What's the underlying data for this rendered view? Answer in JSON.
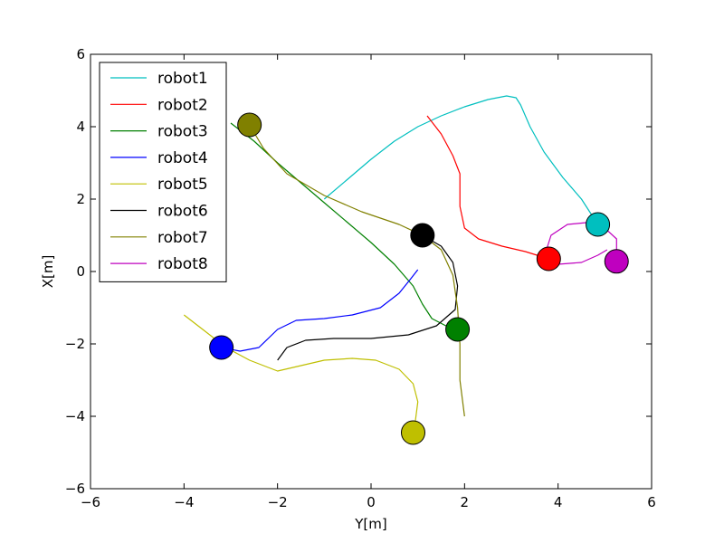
{
  "chart_data": {
    "type": "line",
    "title": "",
    "xlabel": "Y[m]",
    "ylabel": "X[m]",
    "xlim": [
      -6,
      6
    ],
    "ylim": [
      -6,
      6
    ],
    "x_ticks": [
      -6,
      -4,
      -2,
      0,
      2,
      4,
      6
    ],
    "y_ticks": [
      -6,
      -4,
      -2,
      0,
      2,
      4,
      6
    ],
    "x_tick_labels": [
      "−6",
      "−4",
      "−2",
      "0",
      "2",
      "4",
      "6"
    ],
    "y_tick_labels": [
      "−6",
      "−4",
      "−2",
      "0",
      "2",
      "4",
      "6"
    ],
    "grid": false,
    "legend_position": "top-left",
    "series": [
      {
        "name": "robot1",
        "color": "#00bfbf",
        "marker": [
          4.85,
          1.3
        ],
        "points": [
          [
            -1.0,
            2.0
          ],
          [
            -0.5,
            2.55
          ],
          [
            0.0,
            3.1
          ],
          [
            0.5,
            3.6
          ],
          [
            1.0,
            4.0
          ],
          [
            1.5,
            4.3
          ],
          [
            2.0,
            4.55
          ],
          [
            2.5,
            4.75
          ],
          [
            2.9,
            4.85
          ],
          [
            3.1,
            4.8
          ],
          [
            3.2,
            4.6
          ],
          [
            3.4,
            4.0
          ],
          [
            3.7,
            3.3
          ],
          [
            4.1,
            2.6
          ],
          [
            4.5,
            2.0
          ],
          [
            4.85,
            1.3
          ]
        ]
      },
      {
        "name": "robot2",
        "color": "#ff0000",
        "marker": [
          3.8,
          0.35
        ],
        "points": [
          [
            1.2,
            4.3
          ],
          [
            1.5,
            3.8
          ],
          [
            1.75,
            3.2
          ],
          [
            1.9,
            2.7
          ],
          [
            1.9,
            2.2
          ],
          [
            1.9,
            1.8
          ],
          [
            2.0,
            1.2
          ],
          [
            2.3,
            0.9
          ],
          [
            2.8,
            0.7
          ],
          [
            3.3,
            0.55
          ],
          [
            3.8,
            0.35
          ]
        ]
      },
      {
        "name": "robot3",
        "color": "#008000",
        "marker": [
          1.85,
          -1.6
        ],
        "points": [
          [
            -3.0,
            4.1
          ],
          [
            -2.5,
            3.6
          ],
          [
            -2.0,
            3.0
          ],
          [
            -1.5,
            2.45
          ],
          [
            -1.0,
            1.9
          ],
          [
            -0.5,
            1.35
          ],
          [
            0.0,
            0.8
          ],
          [
            0.5,
            0.2
          ],
          [
            0.9,
            -0.4
          ],
          [
            1.1,
            -0.9
          ],
          [
            1.3,
            -1.3
          ],
          [
            1.6,
            -1.5
          ],
          [
            1.85,
            -1.6
          ]
        ]
      },
      {
        "name": "robot4",
        "color": "#0000ff",
        "marker": [
          -3.2,
          -2.1
        ],
        "points": [
          [
            -3.2,
            -2.1
          ],
          [
            -2.8,
            -2.2
          ],
          [
            -2.4,
            -2.1
          ],
          [
            -2.0,
            -1.6
          ],
          [
            -1.6,
            -1.35
          ],
          [
            -1.0,
            -1.3
          ],
          [
            -0.4,
            -1.2
          ],
          [
            0.2,
            -1.0
          ],
          [
            0.6,
            -0.6
          ],
          [
            0.85,
            -0.2
          ],
          [
            1.0,
            0.05
          ]
        ]
      },
      {
        "name": "robot5",
        "color": "#bfbf00",
        "marker": [
          0.9,
          -4.45
        ],
        "points": [
          [
            -4.0,
            -1.2
          ],
          [
            -3.6,
            -1.6
          ],
          [
            -3.1,
            -2.1
          ],
          [
            -2.6,
            -2.45
          ],
          [
            -2.0,
            -2.75
          ],
          [
            -1.5,
            -2.6
          ],
          [
            -1.0,
            -2.45
          ],
          [
            -0.4,
            -2.4
          ],
          [
            0.1,
            -2.45
          ],
          [
            0.6,
            -2.7
          ],
          [
            0.9,
            -3.1
          ],
          [
            1.0,
            -3.6
          ],
          [
            0.95,
            -4.1
          ],
          [
            0.9,
            -4.45
          ]
        ]
      },
      {
        "name": "robot6",
        "color": "#000000",
        "marker": [
          1.1,
          1.0
        ],
        "points": [
          [
            -2.0,
            -2.45
          ],
          [
            -1.8,
            -2.1
          ],
          [
            -1.4,
            -1.9
          ],
          [
            -0.8,
            -1.85
          ],
          [
            0.0,
            -1.85
          ],
          [
            0.8,
            -1.75
          ],
          [
            1.4,
            -1.5
          ],
          [
            1.8,
            -1.05
          ],
          [
            1.85,
            -0.4
          ],
          [
            1.75,
            0.25
          ],
          [
            1.5,
            0.7
          ],
          [
            1.1,
            1.0
          ]
        ]
      },
      {
        "name": "robot7",
        "color": "#808000",
        "marker": [
          -2.6,
          4.05
        ],
        "points": [
          [
            -2.6,
            4.05
          ],
          [
            -2.3,
            3.4
          ],
          [
            -1.8,
            2.7
          ],
          [
            -1.0,
            2.1
          ],
          [
            -0.2,
            1.65
          ],
          [
            0.6,
            1.3
          ],
          [
            1.1,
            1.0
          ],
          [
            1.5,
            0.6
          ],
          [
            1.75,
            -0.1
          ],
          [
            1.85,
            -1.0
          ],
          [
            1.9,
            -2.0
          ],
          [
            1.9,
            -3.0
          ],
          [
            2.0,
            -4.0
          ]
        ]
      },
      {
        "name": "robot8",
        "color": "#bf00bf",
        "marker": [
          5.25,
          0.28
        ],
        "points": [
          [
            3.85,
            0.3
          ],
          [
            3.75,
            0.6
          ],
          [
            3.85,
            1.0
          ],
          [
            4.2,
            1.3
          ],
          [
            4.6,
            1.35
          ],
          [
            5.0,
            1.2
          ],
          [
            5.25,
            0.9
          ],
          [
            5.25,
            0.28
          ]
        ],
        "extra_points": [
          [
            4.0,
            0.2
          ],
          [
            4.5,
            0.25
          ],
          [
            4.85,
            0.45
          ],
          [
            5.05,
            0.6
          ]
        ]
      }
    ]
  }
}
